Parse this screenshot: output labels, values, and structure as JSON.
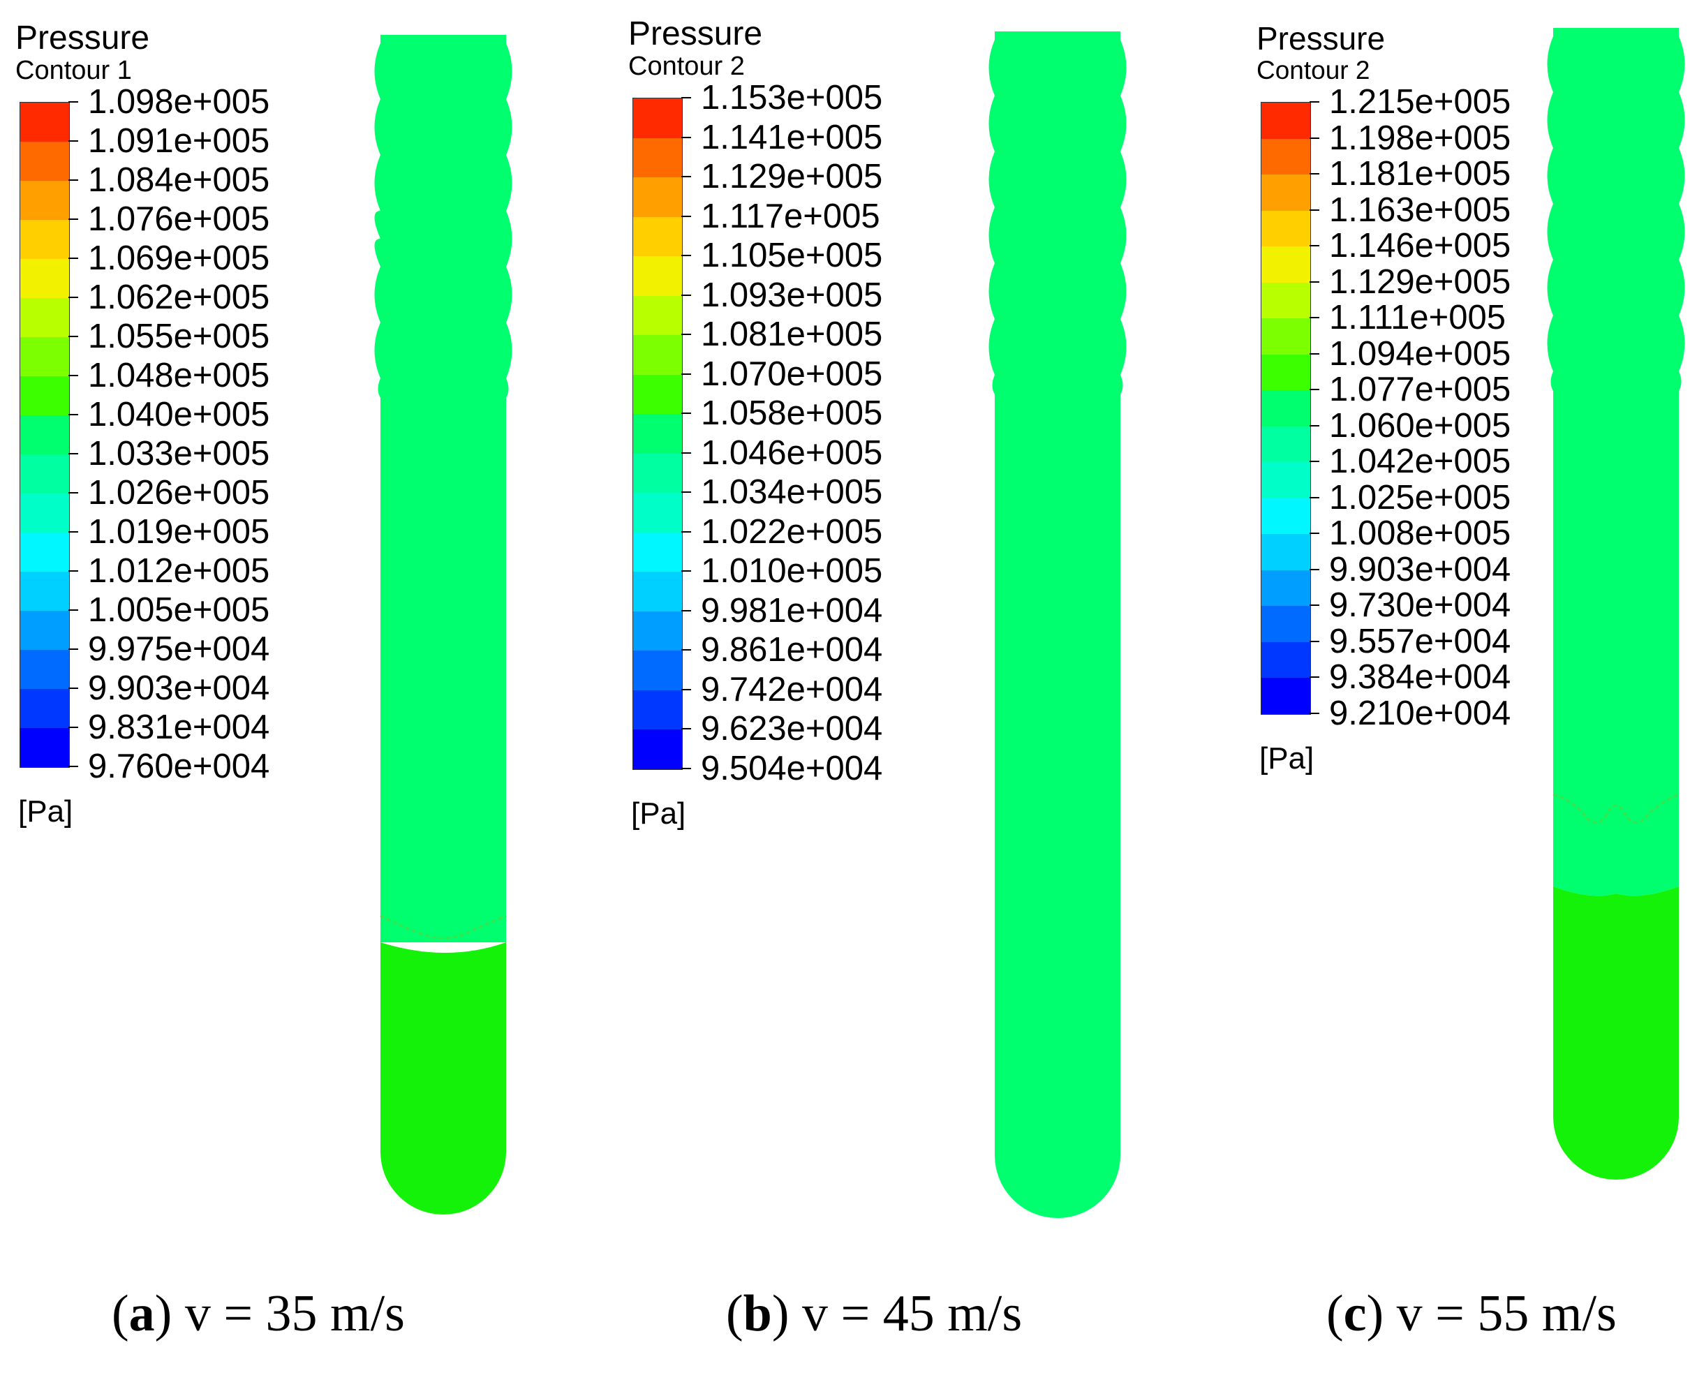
{
  "panels": [
    {
      "id": "a",
      "legend": {
        "title": "Pressure",
        "subtitle": "Contour 1",
        "labels": [
          "1.098e+005",
          "1.091e+005",
          "1.084e+005",
          "1.076e+005",
          "1.069e+005",
          "1.062e+005",
          "1.055e+005",
          "1.048e+005",
          "1.040e+005",
          "1.033e+005",
          "1.026e+005",
          "1.019e+005",
          "1.012e+005",
          "1.005e+005",
          "9.975e+004",
          "9.903e+004",
          "9.831e+004",
          "9.760e+004"
        ],
        "unit": "[Pa]"
      },
      "caption": {
        "letter": "a",
        "text": "v = 35 m/s"
      }
    },
    {
      "id": "b",
      "legend": {
        "title": "Pressure",
        "subtitle": "Contour 2",
        "labels": [
          "1.153e+005",
          "1.141e+005",
          "1.129e+005",
          "1.117e+005",
          "1.105e+005",
          "1.093e+005",
          "1.081e+005",
          "1.070e+005",
          "1.058e+005",
          "1.046e+005",
          "1.034e+005",
          "1.022e+005",
          "1.010e+005",
          "9.981e+004",
          "9.861e+004",
          "9.742e+004",
          "9.623e+004",
          "9.504e+004"
        ],
        "unit": "[Pa]"
      },
      "caption": {
        "letter": "b",
        "text": "v = 45 m/s"
      }
    },
    {
      "id": "c",
      "legend": {
        "title": "Pressure",
        "subtitle": "Contour 2",
        "labels": [
          "1.215e+005",
          "1.198e+005",
          "1.181e+005",
          "1.163e+005",
          "1.146e+005",
          "1.129e+005",
          "1.111e+005",
          "1.094e+005",
          "1.077e+005",
          "1.060e+005",
          "1.042e+005",
          "1.025e+005",
          "1.008e+005",
          "9.903e+004",
          "9.730e+004",
          "9.557e+004",
          "9.384e+004",
          "9.210e+004"
        ],
        "unit": "[Pa]"
      },
      "caption": {
        "letter": "c",
        "text": "v = 55 m/s"
      }
    }
  ],
  "colormap": [
    "#ff2a00",
    "#ff6a00",
    "#ff9f00",
    "#ffcf00",
    "#f2f200",
    "#b8ff00",
    "#7cff00",
    "#3cff00",
    "#00ff26",
    "#00ff6e",
    "#00ffa0",
    "#00ffc8",
    "#00f7ff",
    "#00d0ff",
    "#009eff",
    "#006cff",
    "#0038ff",
    "#0000ff"
  ],
  "fill_colors": {
    "mid_green": "#00ff6e",
    "bright_green": "#14f20a"
  }
}
